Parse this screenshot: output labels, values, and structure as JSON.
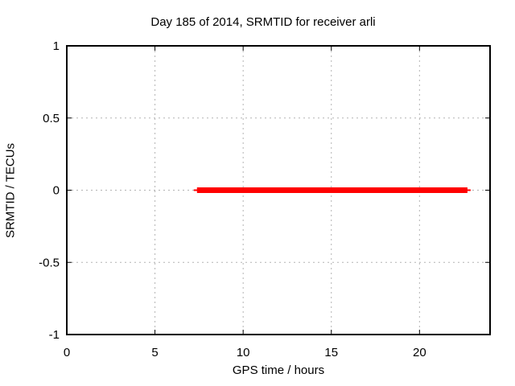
{
  "chart_data": {
    "type": "line",
    "title": "Day 185 of 2014, SRMTID for receiver arli",
    "xlabel": "GPS time / hours",
    "ylabel": "SRMTID / TECUs",
    "xlim": [
      0,
      24
    ],
    "ylim": [
      -1,
      1
    ],
    "xticks": [
      0,
      5,
      10,
      15,
      20
    ],
    "yticks": [
      -1,
      -0.5,
      0,
      0.5,
      1
    ],
    "grid": true,
    "grid_style": "dotted",
    "legend": "none",
    "series": [
      {
        "name": "SRMTID",
        "color": "#ff0000",
        "linewidth": 7,
        "points": [
          [
            7.2,
            0
          ],
          [
            22.9,
            0
          ]
        ]
      }
    ],
    "colors": {
      "background": "#ffffff",
      "frame": "#000000",
      "grid": "#b3b3b3",
      "text": "#000000",
      "series": "#ff0000"
    }
  }
}
